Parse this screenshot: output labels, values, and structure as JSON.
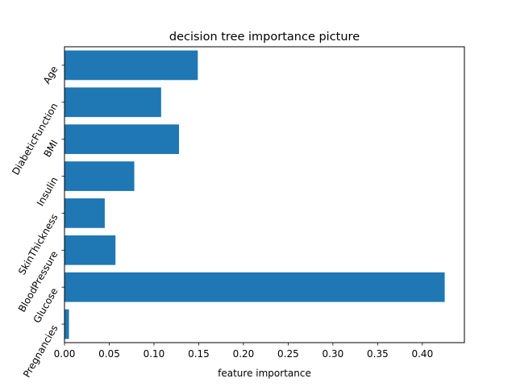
{
  "chart_data": {
    "type": "bar",
    "orientation": "horizontal",
    "title": "decision tree importance picture",
    "xlabel": "feature importance",
    "ylabel": "",
    "categories": [
      "Pregnancies",
      "Glucose",
      "BloodPressure",
      "SkinThickness",
      "Insulin",
      "BMI",
      "DiabeticFunction",
      "Age"
    ],
    "values": [
      0.005,
      0.425,
      0.057,
      0.045,
      0.078,
      0.128,
      0.108,
      0.149
    ],
    "xlim": [
      0.0,
      0.447
    ],
    "xticks": [
      "0.00",
      "0.05",
      "0.10",
      "0.15",
      "0.20",
      "0.25",
      "0.30",
      "0.35",
      "0.40"
    ],
    "xtick_values": [
      0.0,
      0.05,
      0.1,
      0.15,
      0.2,
      0.25,
      0.3,
      0.35,
      0.4
    ],
    "bar_color": "#1f77b4",
    "grid": false,
    "legend": "none"
  }
}
